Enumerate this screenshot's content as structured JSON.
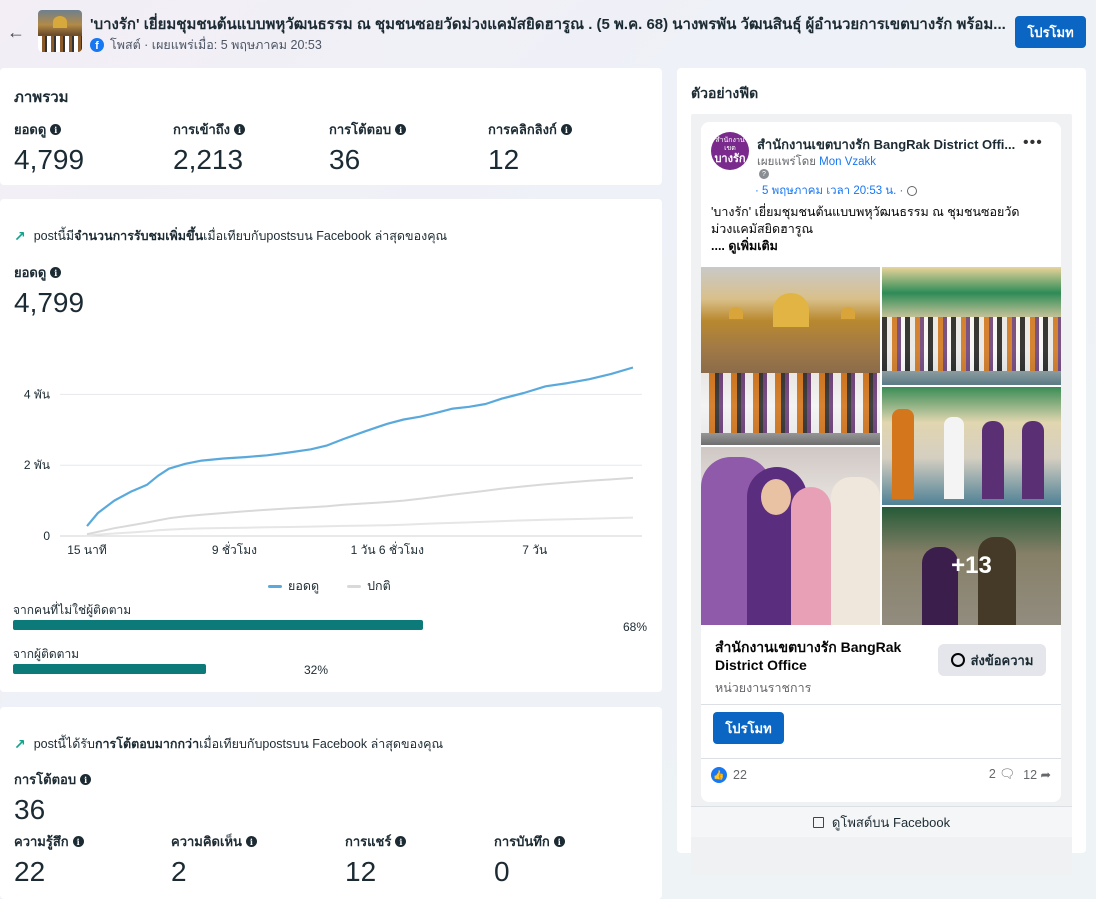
{
  "header": {
    "back_icon": "arrow-left-icon",
    "title": "'บางรัก' เยี่ยมชุมชนต้นแบบพหุวัฒนธรรม ณ ชุมชนซอยวัดม่วงแคมัสยิดฮารูณ . (5 พ.ค. 68) นางพรพัน วัฒนสินธุ์ ผู้อำนวยการเขตบางรัก พร้อม...",
    "subtitle": "โพสต์ · เผยแพร่เมื่อ: 5 พฤษภาคม 20:53",
    "promote_label": "โปรโมท"
  },
  "overview": {
    "title": "ภาพรวม",
    "metrics": [
      {
        "label": "ยอดดู",
        "value": "4,799"
      },
      {
        "label": "การเข้าถึง",
        "value": "2,213"
      },
      {
        "label": "การโต้ตอบ",
        "value": "36"
      },
      {
        "label": "การคลิกลิงก์",
        "value": "12"
      }
    ]
  },
  "reach": {
    "trend_prefix": "postนี้มี",
    "trend_bold": "จำนวนการรับชมเพิ่มขึ้น",
    "trend_suffix": "เมื่อเทียบกับpostsบน Facebook ล่าสุดของคุณ",
    "metric_label": "ยอดดู",
    "metric_value": "4,799",
    "legend_views": "ยอดดู",
    "legend_typical": "ปกติ",
    "nonfollowers_label": "จากคนที่ไม่ใช่ผู้ติดตาม",
    "nonfollowers_pct": "68%",
    "nonfollowers_value": 0.68,
    "followers_label": "จากผู้ติดตาม",
    "followers_pct": "32%",
    "followers_value": 0.32
  },
  "chart_data": {
    "type": "line",
    "x_tick_labels": [
      "15 นาที",
      "9 ชั่วโมง",
      "1 วัน 6 ชั่วโมง",
      "7 วัน"
    ],
    "y_tick_labels": [
      "0",
      "2 พัน",
      "4 พัน"
    ],
    "ylim": [
      0,
      5000
    ],
    "grid": true,
    "legend_position": "bottom",
    "colors": {
      "views": "#5aa9dc",
      "typical": "#d9d9d9",
      "typical_low": "#e6e6e6"
    },
    "x": [
      0,
      0.02,
      0.05,
      0.08,
      0.11,
      0.13,
      0.15,
      0.18,
      0.21,
      0.25,
      0.29,
      0.33,
      0.37,
      0.41,
      0.44,
      0.47,
      0.51,
      0.55,
      0.58,
      0.61,
      0.64,
      0.67,
      0.7,
      0.73,
      0.76,
      0.8,
      0.84,
      0.88,
      0.92,
      0.96,
      1
    ],
    "series": [
      {
        "name": "ยอดดู",
        "values": [
          280,
          650,
          1000,
          1250,
          1450,
          1700,
          1900,
          2040,
          2130,
          2190,
          2230,
          2280,
          2360,
          2450,
          2560,
          2740,
          2960,
          3170,
          3290,
          3370,
          3480,
          3600,
          3650,
          3730,
          3880,
          4040,
          4230,
          4320,
          4430,
          4580,
          4760
        ]
      },
      {
        "name": "ปกติ",
        "values": [
          50,
          120,
          220,
          300,
          380,
          440,
          500,
          560,
          600,
          650,
          700,
          740,
          780,
          810,
          840,
          880,
          920,
          960,
          1000,
          1050,
          1110,
          1170,
          1220,
          1280,
          1340,
          1400,
          1460,
          1510,
          1560,
          1600,
          1640
        ]
      },
      {
        "name": "",
        "values": [
          20,
          40,
          70,
          100,
          130,
          160,
          180,
          200,
          215,
          225,
          235,
          245,
          255,
          265,
          275,
          285,
          295,
          305,
          320,
          340,
          355,
          370,
          385,
          400,
          420,
          440,
          460,
          475,
          490,
          505,
          520
        ]
      }
    ]
  },
  "engagement": {
    "trend_prefix": "postนี้ได้รับ",
    "trend_bold": "การโต้ตอบมากกว่า",
    "trend_suffix": "เมื่อเทียบกับpostsบน Facebook ล่าสุดของคุณ",
    "metric_label": "การโต้ตอบ",
    "metric_value": "36",
    "metrics": [
      {
        "label": "ความรู้สึก",
        "value": "22"
      },
      {
        "label": "ความคิดเห็น",
        "value": "2"
      },
      {
        "label": "การแชร์",
        "value": "12"
      },
      {
        "label": "การบันทึก",
        "value": "0"
      }
    ]
  },
  "preview": {
    "title": "ตัวอย่างฟีด",
    "page_name": "สำนักงานเขตบางรัก BangRak District Offi...",
    "avatar_line1": "สำนักงานเขต",
    "avatar_line2": "บางรัก",
    "published_by_prefix": "เผยแพร่โดย ",
    "published_by_name": "Mon Vzakk",
    "date": "· 5 พฤษภาคม เวลา 20:53 น. ·",
    "text": "'บางรัก' เยี่ยมชุมชนต้นแบบพหุวัฒนธรรม ณ ชุมชนซอยวัดม่วงแคมัสยิดฮารูณ",
    "see_more": ".... ดูเพิ่มเติม",
    "more_photos": "+13",
    "footer_name": "สำนักงานเขตบางรัก BangRak District Office",
    "footer_category": "หน่วยงานราชการ",
    "message_label": "ส่งข้อความ",
    "promote_label": "โปรโมท",
    "likes": "22",
    "comments": "2",
    "shares": "12",
    "view_on_fb": "ดูโพสต์บน Facebook"
  }
}
